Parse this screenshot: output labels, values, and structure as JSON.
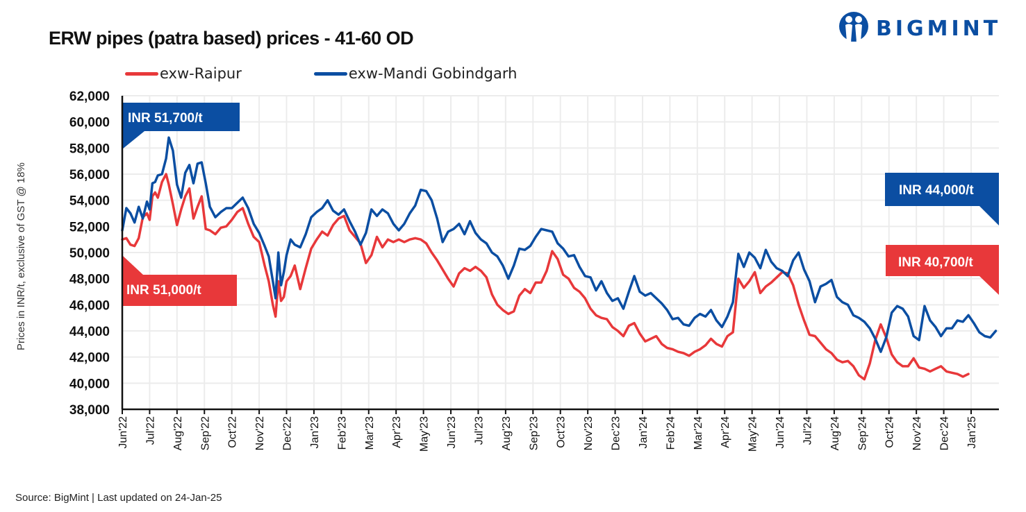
{
  "header": {
    "title": "ERW pipes (patra based) prices - 41-60 OD",
    "logo_text": "BIGMINT",
    "logo_icon": "bigmint-people-logo-icon"
  },
  "footer": {
    "source": "Source: BigMint  | Last updated on 24-Jan-25"
  },
  "colors": {
    "raipur": "#e8383a",
    "mandi": "#0b4ea2",
    "grid": "#ececec",
    "axis": "#111111"
  },
  "chart_data": {
    "type": "line",
    "title": "ERW pipes (patra based) prices - 41-60 OD",
    "xlabel": "",
    "ylabel": "Prices in INR/t, exclusive of GST @ 18%",
    "ylim": [
      38000,
      62000
    ],
    "yticks": [
      38000,
      40000,
      42000,
      44000,
      46000,
      48000,
      50000,
      52000,
      54000,
      56000,
      58000,
      60000,
      62000
    ],
    "ytick_labels": [
      "38,000",
      "40,000",
      "42,000",
      "44,000",
      "46,000",
      "48,000",
      "50,000",
      "52,000",
      "54,000",
      "56,000",
      "58,000",
      "60,000",
      "62,000"
    ],
    "x_tick_labels": [
      "Jun'22",
      "Jul'22",
      "Aug'22",
      "Sep'22",
      "Oct'22",
      "Nov'22",
      "Dec'22",
      "Jan'23",
      "Feb'23",
      "Mar'23",
      "Apr'23",
      "May'23",
      "Jun'23",
      "Jul'23",
      "Aug'23",
      "Sep'23",
      "Oct'23",
      "Nov'23",
      "Dec'23",
      "Jan'24",
      "Feb'24",
      "Mar'24",
      "Apr'24",
      "May'24",
      "Jun'24",
      "Jul'24",
      "Aug'24",
      "Sep'24",
      "Oct'24",
      "Nov'24",
      "Dec'24",
      "Jan'25"
    ],
    "x_range_months": [
      0,
      32
    ],
    "grid": true,
    "legend_position": "top-left",
    "series": [
      {
        "name": "exw-Raipur",
        "color": "#e8383a",
        "x_months": [
          0,
          0.15,
          0.3,
          0.45,
          0.6,
          0.75,
          0.9,
          1.0,
          1.1,
          1.2,
          1.3,
          1.45,
          1.6,
          1.7,
          1.85,
          2.0,
          2.15,
          2.3,
          2.45,
          2.6,
          2.75,
          2.9,
          3.05,
          3.2,
          3.4,
          3.6,
          3.8,
          4.0,
          4.2,
          4.4,
          4.6,
          4.8,
          5.0,
          5.2,
          5.35,
          5.5,
          5.6,
          5.7,
          5.8,
          5.9,
          6.0,
          6.15,
          6.3,
          6.5,
          6.7,
          6.9,
          7.1,
          7.3,
          7.5,
          7.7,
          7.9,
          8.1,
          8.3,
          8.5,
          8.7,
          8.9,
          9.1,
          9.3,
          9.5,
          9.7,
          9.9,
          10.1,
          10.3,
          10.5,
          10.7,
          10.9,
          11.1,
          11.3,
          11.5,
          11.7,
          11.9,
          12.1,
          12.3,
          12.5,
          12.7,
          12.9,
          13.1,
          13.3,
          13.5,
          13.7,
          13.9,
          14.1,
          14.3,
          14.5,
          14.7,
          14.9,
          15.1,
          15.3,
          15.5,
          15.7,
          15.9,
          16.1,
          16.3,
          16.5,
          16.7,
          16.9,
          17.1,
          17.3,
          17.5,
          17.7,
          17.9,
          18.1,
          18.3,
          18.5,
          18.7,
          18.9,
          19.1,
          19.3,
          19.5,
          19.7,
          19.9,
          20.1,
          20.3,
          20.5,
          20.7,
          20.9,
          21.1,
          21.3,
          21.5,
          21.7,
          21.9,
          22.1,
          22.3,
          22.5,
          22.7,
          22.9,
          23.1,
          23.3,
          23.5,
          23.7,
          23.9,
          24.1,
          24.3,
          24.5,
          24.7,
          24.9,
          25.1,
          25.3,
          25.5,
          25.7,
          25.9,
          26.1,
          26.3,
          26.5,
          26.7,
          26.9,
          27.1,
          27.3,
          27.5,
          27.7,
          27.9,
          28.1,
          28.3,
          28.5,
          28.7,
          28.9,
          29.1,
          29.3,
          29.5,
          29.7,
          29.9,
          30.1,
          30.3,
          30.5,
          30.7,
          30.9,
          31.1,
          31.3,
          31.5,
          31.7,
          31.9,
          32.0
        ],
        "values": [
          51000,
          51100,
          50600,
          50500,
          51100,
          52700,
          53000,
          52500,
          54300,
          54600,
          54200,
          55400,
          56000,
          55200,
          53700,
          52100,
          53300,
          54300,
          54900,
          52600,
          53500,
          54300,
          51800,
          51700,
          51400,
          51900,
          52000,
          52500,
          53100,
          53400,
          52200,
          51200,
          50800,
          49000,
          47800,
          46000,
          45100,
          47800,
          46300,
          46600,
          47800,
          48200,
          49000,
          47200,
          48800,
          50300,
          51000,
          51600,
          51300,
          52100,
          52600,
          52800,
          51700,
          51200,
          50700,
          49200,
          49800,
          51200,
          50400,
          51000,
          50800,
          51000,
          50800,
          51000,
          51100,
          51000,
          50700,
          50000,
          49400,
          48700,
          48000,
          47400,
          48400,
          48800,
          48600,
          48900,
          48600,
          48100,
          46800,
          46000,
          45600,
          45300,
          45500,
          46700,
          47200,
          46900,
          47700,
          47700,
          48600,
          50100,
          49500,
          48300,
          48000,
          47300,
          47000,
          46500,
          45700,
          45200,
          45000,
          44900,
          44300,
          44000,
          43600,
          44400,
          44600,
          43800,
          43200,
          43400,
          43600,
          43000,
          42700,
          42600,
          42400,
          42300,
          42100,
          42400,
          42600,
          42900,
          43400,
          43000,
          42800,
          43600,
          43900,
          48000,
          47300,
          47800,
          48500,
          46900,
          47400,
          47700,
          48100,
          48500,
          48400,
          47500,
          46000,
          44800,
          43700,
          43600,
          43100,
          42600,
          42300,
          41800,
          41600,
          41700,
          41300,
          40600,
          40300,
          41500,
          43300,
          44500,
          43500,
          42200,
          41600,
          41300,
          41300,
          41900,
          41200,
          41100,
          40900,
          41100,
          41300,
          40900,
          40800,
          40700,
          40500,
          40700
        ]
      },
      {
        "name": "exw-Mandi Gobindgarh",
        "color": "#0b4ea2",
        "x_months": [
          0,
          0.15,
          0.3,
          0.45,
          0.6,
          0.75,
          0.9,
          1.0,
          1.1,
          1.2,
          1.3,
          1.45,
          1.6,
          1.7,
          1.85,
          2.0,
          2.15,
          2.3,
          2.45,
          2.6,
          2.75,
          2.9,
          3.05,
          3.2,
          3.4,
          3.6,
          3.8,
          4.0,
          4.2,
          4.4,
          4.6,
          4.8,
          5.0,
          5.2,
          5.35,
          5.5,
          5.6,
          5.7,
          5.8,
          5.9,
          6.0,
          6.15,
          6.3,
          6.5,
          6.7,
          6.9,
          7.1,
          7.3,
          7.5,
          7.7,
          7.9,
          8.1,
          8.3,
          8.5,
          8.7,
          8.9,
          9.1,
          9.3,
          9.5,
          9.7,
          9.9,
          10.1,
          10.3,
          10.5,
          10.7,
          10.9,
          11.1,
          11.3,
          11.5,
          11.7,
          11.9,
          12.1,
          12.3,
          12.5,
          12.7,
          12.9,
          13.1,
          13.3,
          13.5,
          13.7,
          13.9,
          14.1,
          14.3,
          14.5,
          14.7,
          14.9,
          15.1,
          15.3,
          15.5,
          15.7,
          15.9,
          16.1,
          16.3,
          16.5,
          16.7,
          16.9,
          17.1,
          17.3,
          17.5,
          17.7,
          17.9,
          18.1,
          18.3,
          18.5,
          18.7,
          18.9,
          19.1,
          19.3,
          19.5,
          19.7,
          19.9,
          20.1,
          20.3,
          20.5,
          20.7,
          20.9,
          21.1,
          21.3,
          21.5,
          21.7,
          21.9,
          22.1,
          22.3,
          22.5,
          22.7,
          22.9,
          23.1,
          23.3,
          23.5,
          23.7,
          23.9,
          24.1,
          24.3,
          24.5,
          24.7,
          24.9,
          25.1,
          25.3,
          25.5,
          25.7,
          25.9,
          26.1,
          26.3,
          26.5,
          26.7,
          26.9,
          27.1,
          27.3,
          27.5,
          27.7,
          27.9,
          28.1,
          28.3,
          28.5,
          28.7,
          28.9,
          29.1,
          29.3,
          29.5,
          29.7,
          29.9,
          30.1,
          30.3,
          30.5,
          30.7,
          30.9,
          31.1,
          31.3,
          31.5,
          31.7,
          31.9,
          32.0
        ],
        "values": [
          51700,
          53400,
          53000,
          52300,
          53500,
          52600,
          53900,
          53300,
          55300,
          55400,
          55900,
          56000,
          57200,
          58800,
          57800,
          55200,
          54200,
          56100,
          56700,
          55300,
          56800,
          56900,
          55300,
          53500,
          52700,
          53100,
          53400,
          53400,
          53800,
          54200,
          53400,
          52200,
          51500,
          50500,
          49700,
          47800,
          46500,
          50000,
          47500,
          48500,
          49800,
          51000,
          50600,
          50400,
          51400,
          52700,
          53100,
          53400,
          54000,
          53200,
          52900,
          53300,
          52400,
          51600,
          50600,
          51500,
          53300,
          52800,
          53300,
          53000,
          52200,
          51700,
          52200,
          53000,
          53600,
          54800,
          54700,
          54000,
          52600,
          50800,
          51600,
          51800,
          52200,
          51400,
          52400,
          51500,
          51000,
          50700,
          50000,
          49700,
          49000,
          48000,
          49000,
          50300,
          50200,
          50500,
          51200,
          51800,
          51700,
          51600,
          50700,
          50300,
          49700,
          49800,
          48900,
          48200,
          48100,
          47100,
          47800,
          46900,
          46300,
          46500,
          45700,
          47000,
          48200,
          47000,
          46700,
          46900,
          46500,
          46100,
          45600,
          44900,
          45000,
          44500,
          44400,
          45000,
          45300,
          45100,
          45600,
          44800,
          44300,
          45100,
          46200,
          49900,
          48900,
          50000,
          49600,
          48800,
          50200,
          49300,
          48800,
          48600,
          48200,
          49400,
          50000,
          48700,
          47800,
          46200,
          47400,
          47600,
          47900,
          46600,
          46200,
          46000,
          45200,
          45000,
          44700,
          44200,
          43400,
          42400,
          43500,
          45400,
          45900,
          45700,
          45100,
          43600,
          43300,
          45900,
          44800,
          44300,
          43600,
          44200,
          44200,
          44800,
          44700,
          45200,
          44600,
          43900,
          43600,
          43500,
          44000
        ]
      }
    ],
    "annotations": [
      {
        "text": "INR 51,700/t",
        "series": "exw-Mandi Gobindgarh",
        "anchor": "start"
      },
      {
        "text": "INR 51,000/t",
        "series": "exw-Raipur",
        "anchor": "start"
      },
      {
        "text": "INR 44,000/t",
        "series": "exw-Mandi Gobindgarh",
        "anchor": "end"
      },
      {
        "text": "INR 40,700/t",
        "series": "exw-Raipur",
        "anchor": "end"
      }
    ]
  }
}
